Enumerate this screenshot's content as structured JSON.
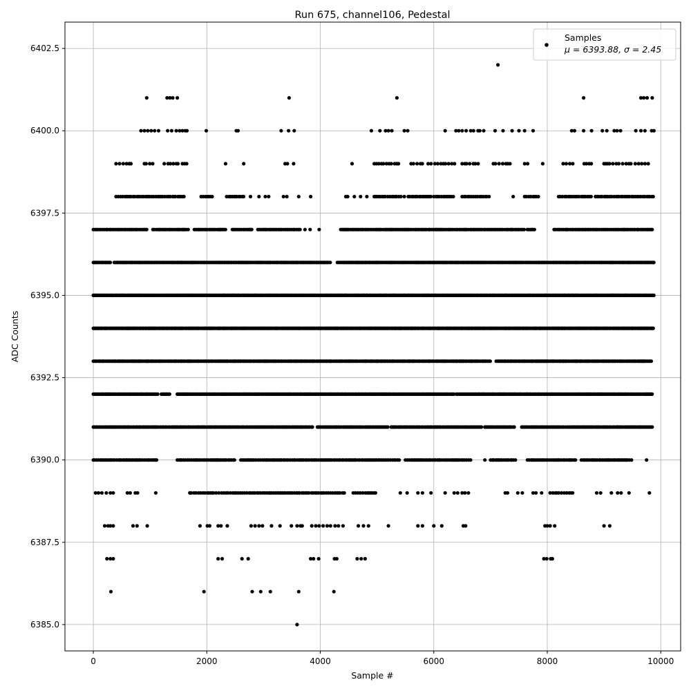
{
  "chart_data": {
    "type": "scatter",
    "title": "Run 675, channel106, Pedestal",
    "xlabel": "Sample #",
    "ylabel": "ADC Counts",
    "xlim": [
      -500,
      10350
    ],
    "ylim": [
      6384.2,
      6403.3
    ],
    "xticks": [
      0,
      2000,
      4000,
      6000,
      8000,
      10000
    ],
    "xtick_labels": [
      "0",
      "2000",
      "4000",
      "6000",
      "8000",
      "10000"
    ],
    "yticks": [
      6385.0,
      6387.5,
      6390.0,
      6392.5,
      6395.0,
      6397.5,
      6400.0,
      6402.5
    ],
    "ytick_labels": [
      "6385.0",
      "6387.5",
      "6390.0",
      "6392.5",
      "6395.0",
      "6397.5",
      "6400.0",
      "6402.5"
    ],
    "grid": true,
    "legend": {
      "placement": "top-right",
      "series_name": "Samples",
      "stats_text": "μ = 6393.88, σ = 2.45"
    },
    "series_color": "#000000",
    "series": [
      {
        "name": "Samples",
        "points": [
          [
            940,
            6401
          ],
          [
            1300,
            6401
          ],
          [
            1350,
            6401
          ],
          [
            1400,
            6401
          ],
          [
            1480,
            6401
          ],
          [
            3450,
            6401
          ],
          [
            5350,
            6401
          ],
          [
            7130,
            6402
          ],
          [
            8640,
            6401
          ],
          [
            9650,
            6401
          ],
          [
            9700,
            6401
          ],
          [
            9760,
            6401
          ],
          [
            9850,
            6401
          ],
          [
            3620,
            6386
          ],
          [
            1950,
            6386
          ],
          [
            2800,
            6386
          ],
          [
            2950,
            6386
          ],
          [
            3120,
            6386
          ],
          [
            310,
            6386
          ],
          [
            4240,
            6386
          ],
          [
            3590,
            6385
          ],
          [
            240,
            6387
          ],
          [
            300,
            6387
          ],
          [
            350,
            6387
          ],
          [
            2200,
            6387
          ],
          [
            2270,
            6387
          ],
          [
            2620,
            6387
          ],
          [
            2730,
            6387
          ],
          [
            3830,
            6387
          ],
          [
            3880,
            6387
          ],
          [
            3970,
            6387
          ],
          [
            4250,
            6387
          ],
          [
            4290,
            6387
          ],
          [
            4650,
            6387
          ],
          [
            4720,
            6387
          ],
          [
            4790,
            6387
          ],
          [
            7940,
            6387
          ],
          [
            7990,
            6387
          ],
          [
            8060,
            6387
          ],
          [
            8090,
            6387
          ],
          [
            200,
            6388
          ],
          [
            260,
            6388
          ],
          [
            300,
            6388
          ],
          [
            350,
            6388
          ],
          [
            700,
            6388
          ],
          [
            770,
            6388
          ],
          [
            950,
            6388
          ],
          [
            1880,
            6388
          ],
          [
            2010,
            6388
          ],
          [
            2050,
            6388
          ],
          [
            2200,
            6388
          ],
          [
            2250,
            6388
          ],
          [
            2360,
            6388
          ],
          [
            2780,
            6388
          ],
          [
            2850,
            6388
          ],
          [
            2920,
            6388
          ],
          [
            2980,
            6388
          ],
          [
            3140,
            6388
          ],
          [
            3290,
            6388
          ],
          [
            3490,
            6388
          ],
          [
            3590,
            6388
          ],
          [
            3650,
            6388
          ],
          [
            3680,
            6388
          ],
          [
            3850,
            6388
          ],
          [
            3920,
            6388
          ],
          [
            3980,
            6388
          ],
          [
            4050,
            6388
          ],
          [
            4120,
            6388
          ],
          [
            4180,
            6388
          ],
          [
            4260,
            6388
          ],
          [
            4320,
            6388
          ],
          [
            4400,
            6388
          ],
          [
            4670,
            6388
          ],
          [
            4760,
            6388
          ],
          [
            4850,
            6388
          ],
          [
            5200,
            6388
          ],
          [
            5720,
            6388
          ],
          [
            5800,
            6388
          ],
          [
            6000,
            6388
          ],
          [
            6140,
            6388
          ],
          [
            6520,
            6388
          ],
          [
            6560,
            6388
          ],
          [
            7960,
            6388
          ],
          [
            8000,
            6388
          ],
          [
            8050,
            6388
          ],
          [
            8130,
            6388
          ],
          [
            9000,
            6388
          ],
          [
            9100,
            6388
          ],
          [
            40,
            6389
          ],
          [
            90,
            6389
          ],
          [
            150,
            6389
          ],
          [
            230,
            6389
          ],
          [
            300,
            6389
          ],
          [
            350,
            6389
          ],
          [
            600,
            6389
          ],
          [
            650,
            6389
          ],
          [
            740,
            6389
          ],
          [
            780,
            6389
          ],
          [
            1100,
            6389
          ],
          [
            1710,
            6389
          ]
        ],
        "level_runs": [
          {
            "y": 6389,
            "ranges": [
              [
                1700,
                4450
              ],
              [
                4580,
                5000
              ],
              [
                8050,
                8450
              ]
            ],
            "step": 35
          },
          {
            "y": 6390,
            "ranges": [
              [
                0,
                1150
              ],
              [
                1480,
                2500
              ],
              [
                2600,
                5400
              ],
              [
                5500,
                6650
              ],
              [
                7000,
                7450
              ],
              [
                7650,
                8500
              ],
              [
                8600,
                9500
              ]
            ],
            "step": 28
          },
          {
            "y": 6391,
            "ranges": [
              [
                0,
                3880
              ],
              [
                3950,
                5200
              ],
              [
                5250,
                6850
              ],
              [
                6900,
                7450
              ],
              [
                7550,
                9850
              ]
            ],
            "step": 25
          },
          {
            "y": 6392,
            "ranges": [
              [
                0,
                1150
              ],
              [
                1200,
                1350
              ],
              [
                1480,
                6380
              ],
              [
                6400,
                9850
              ]
            ],
            "step": 22
          },
          {
            "y": 6393,
            "ranges": [
              [
                0,
                6000
              ],
              [
                6030,
                7000
              ],
              [
                7100,
                9850
              ]
            ],
            "step": 20
          },
          {
            "y": 6394,
            "ranges": [
              [
                0,
                9880
              ]
            ],
            "step": 18
          },
          {
            "y": 6395,
            "ranges": [
              [
                0,
                9880
              ]
            ],
            "step": 18
          },
          {
            "y": 6396,
            "ranges": [
              [
                0,
                300
              ],
              [
                370,
                4180
              ],
              [
                4300,
                9880
              ]
            ],
            "step": 20
          },
          {
            "y": 6397,
            "ranges": [
              [
                0,
                950
              ],
              [
                1050,
                1700
              ],
              [
                1780,
                2350
              ],
              [
                2450,
                2800
              ],
              [
                2900,
                3650
              ],
              [
                4360,
                7600
              ],
              [
                7650,
                7800
              ],
              [
                8120,
                9880
              ]
            ],
            "step": 26
          },
          {
            "y": 6398,
            "ranges": [
              [
                400,
                1600
              ],
              [
                1900,
                2100
              ],
              [
                2350,
                2650
              ],
              [
                4450,
                4500
              ],
              [
                4950,
                5450
              ],
              [
                5550,
                5950
              ],
              [
                6000,
                6350
              ],
              [
                6500,
                7000
              ],
              [
                7600,
                7850
              ],
              [
                8200,
                8800
              ],
              [
                8850,
                9880
              ]
            ],
            "step": 32
          },
          {
            "y": 6399,
            "ranges": [
              [
                400,
                700
              ],
              [
                900,
                1050
              ],
              [
                1250,
                1500
              ],
              [
                1570,
                1680
              ],
              [
                4950,
                5400
              ],
              [
                5600,
                5800
              ],
              [
                5900,
                6400
              ],
              [
                6500,
                6800
              ],
              [
                7050,
                7350
              ],
              [
                7600,
                7720
              ],
              [
                8280,
                8460
              ],
              [
                8650,
                8800
              ],
              [
                9000,
                9500
              ],
              [
                9550,
                9800
              ]
            ],
            "step": 48
          }
        ],
        "level_points": [
          {
            "y": 6400,
            "x": [
              840,
              900,
              960,
              1020,
              1080,
              1150,
              1310,
              1380,
              1460,
              1520,
              1570,
              1620,
              1650,
              1990,
              2520,
              2550,
              3310,
              3440,
              3540,
              4900,
              5050,
              5150,
              5200,
              5260,
              5480,
              5540,
              6200,
              6390,
              6440,
              6500,
              6570,
              6650,
              6700,
              6780,
              6810,
              6880,
              7080,
              7220,
              7380,
              7500,
              7600,
              7750,
              8430,
              8480,
              8640,
              8780,
              8970,
              9050,
              9180,
              9230,
              9290,
              9560,
              9650,
              9720,
              9840,
              9880
            ]
          },
          {
            "y": 6399,
            "x": [
              2330,
              2650,
              3380,
              3420,
              3530,
              4560,
              7920
            ]
          },
          {
            "y": 6398,
            "x": [
              2770,
              2920,
              3030,
              3090,
              3350,
              3410,
              3620,
              3830,
              4600,
              4710,
              4820,
              5480,
              5680,
              7400
            ]
          },
          {
            "y": 6397,
            "x": [
              3980,
              3820,
              3730
            ]
          },
          {
            "y": 6390,
            "x": [
              6900,
              7050,
              7150,
              9750
            ]
          },
          {
            "y": 6389,
            "x": [
              5410,
              5530,
              5720,
              5800,
              5950,
              6200,
              6360,
              6420,
              6500,
              6550,
              6610,
              7260,
              7300,
              7480,
              7560,
              7750,
              7800,
              7900,
              8870,
              8940,
              9130,
              9240,
              9300,
              9440,
              9800
            ]
          }
        ]
      }
    ]
  }
}
